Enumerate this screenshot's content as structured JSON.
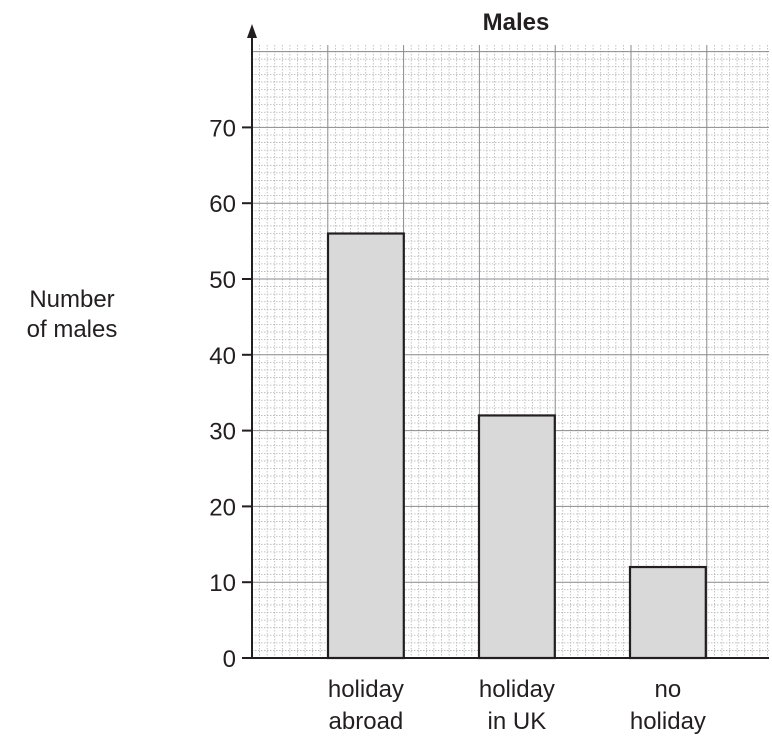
{
  "chart_data": {
    "type": "bar",
    "title": "Males",
    "ylabel_lines": [
      "Number",
      "of males"
    ],
    "xlabel": "",
    "categories": [
      [
        "holiday",
        "abroad"
      ],
      [
        "holiday",
        "in UK"
      ],
      [
        "no",
        "holiday"
      ]
    ],
    "values": [
      56,
      32,
      12
    ],
    "ylim": [
      0,
      80
    ],
    "yticks": [
      0,
      10,
      20,
      30,
      40,
      50,
      60,
      70
    ],
    "grid": true,
    "bar_color": "#d9d9da",
    "line_color": "#231f20"
  }
}
